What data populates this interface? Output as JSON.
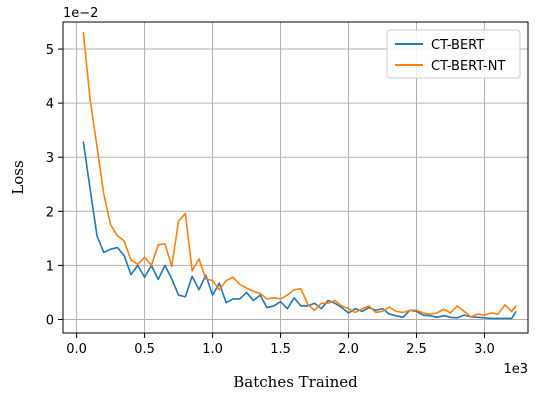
{
  "chart_data": {
    "type": "line",
    "title": "",
    "xlabel": "Batches Trained",
    "ylabel": "Loss",
    "x_offset_label": "1e3",
    "y_offset_label": "1e−2",
    "xlim": [
      -0.1,
      3.32
    ],
    "ylim": [
      -0.25,
      5.5
    ],
    "x_ticks": [
      0.0,
      0.5,
      1.0,
      1.5,
      2.0,
      2.5,
      3.0
    ],
    "x_tick_labels": [
      "0.0",
      "0.5",
      "1.0",
      "1.5",
      "2.0",
      "2.5",
      "3.0"
    ],
    "y_ticks": [
      0,
      1,
      2,
      3,
      4,
      5
    ],
    "y_tick_labels": [
      "0",
      "1",
      "2",
      "3",
      "4",
      "5"
    ],
    "grid": true,
    "legend_position": "top-right",
    "x_values": [
      0.05,
      0.1,
      0.15,
      0.2,
      0.25,
      0.3,
      0.35,
      0.4,
      0.45,
      0.5,
      0.55,
      0.6,
      0.65,
      0.7,
      0.75,
      0.8,
      0.85,
      0.9,
      0.95,
      1.0,
      1.05,
      1.1,
      1.15,
      1.2,
      1.25,
      1.3,
      1.35,
      1.4,
      1.45,
      1.5,
      1.55,
      1.6,
      1.65,
      1.7,
      1.75,
      1.8,
      1.85,
      1.9,
      1.95,
      2.0,
      2.05,
      2.1,
      2.15,
      2.2,
      2.25,
      2.3,
      2.35,
      2.4,
      2.45,
      2.5,
      2.55,
      2.6,
      2.65,
      2.7,
      2.75,
      2.8,
      2.85,
      2.9,
      2.95,
      3.0,
      3.05,
      3.1,
      3.15,
      3.2,
      3.23
    ],
    "series": [
      {
        "name": "CT-BERT",
        "color": "#1f77b4",
        "values": [
          3.28,
          2.4,
          1.55,
          1.24,
          1.3,
          1.33,
          1.18,
          0.83,
          1.0,
          0.78,
          1.0,
          0.74,
          1.0,
          0.75,
          0.45,
          0.42,
          0.8,
          0.55,
          0.82,
          0.45,
          0.67,
          0.31,
          0.38,
          0.38,
          0.5,
          0.35,
          0.45,
          0.22,
          0.25,
          0.33,
          0.2,
          0.4,
          0.25,
          0.25,
          0.3,
          0.2,
          0.35,
          0.3,
          0.22,
          0.12,
          0.2,
          0.15,
          0.22,
          0.17,
          0.2,
          0.1,
          0.07,
          0.04,
          0.17,
          0.15,
          0.08,
          0.07,
          0.04,
          0.07,
          0.04,
          0.03,
          0.08,
          0.05,
          0.04,
          0.03,
          0.02,
          0.02,
          0.02,
          0.02,
          0.14
        ]
      },
      {
        "name": "CT-BERT-NT",
        "color": "#ff7f0e",
        "values": [
          5.3,
          4.05,
          3.2,
          2.32,
          1.75,
          1.55,
          1.45,
          1.1,
          1.02,
          1.15,
          1.0,
          1.38,
          1.4,
          0.98,
          1.82,
          1.96,
          0.9,
          1.12,
          0.75,
          0.72,
          0.55,
          0.72,
          0.78,
          0.65,
          0.58,
          0.52,
          0.48,
          0.38,
          0.4,
          0.38,
          0.45,
          0.55,
          0.57,
          0.28,
          0.17,
          0.3,
          0.3,
          0.35,
          0.25,
          0.2,
          0.13,
          0.2,
          0.25,
          0.13,
          0.15,
          0.23,
          0.15,
          0.13,
          0.17,
          0.17,
          0.12,
          0.1,
          0.12,
          0.19,
          0.12,
          0.25,
          0.15,
          0.05,
          0.1,
          0.08,
          0.12,
          0.1,
          0.27,
          0.15,
          0.25
        ]
      }
    ]
  }
}
